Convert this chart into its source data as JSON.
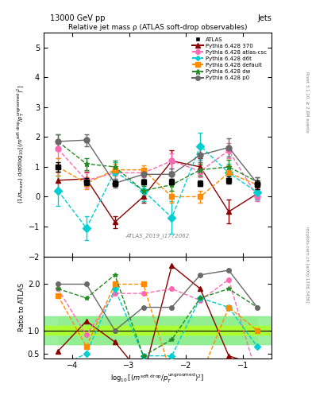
{
  "title_top": "13000 GeV pp",
  "title_top_right": "Jets",
  "plot_title": "Relative jet mass ρ (ATLAS soft-drop observables)",
  "watermark": "ATLAS_2019_I1772062",
  "right_label_top": "Rivet 3.1.10, ≥ 2.6M events",
  "right_label_bottom": "mcplots.cern.ch [arXiv:1306.3436]",
  "ylabel_main": "(1/σₛₑₜʳⁱᶜ) dσ/d log₁₀[(mˢᵒᶠᵗ ᵈʳᵒᵖ/pᵀᵘⁿᵏʳᵒᵒᵐᵉᵈ)²]",
  "ylabel_ratio": "Ratio to ATLAS",
  "xlabel": "log₁₀[(mˢᵒᶠᵗ ᵈʳᵒᵖ/pᵀᵘⁿᵏʳᵒᵒᵐᵉᵈ)²]",
  "xlim": [
    -4.5,
    -0.5
  ],
  "ylim_main": [
    -2.0,
    5.5
  ],
  "ylim_ratio": [
    0.4,
    2.6
  ],
  "x_atlas": [
    -4.25,
    -3.75,
    -3.25,
    -2.75,
    -2.25,
    -1.75,
    -1.25,
    -0.75
  ],
  "y_atlas": [
    1.0,
    0.5,
    0.45,
    0.5,
    0.5,
    0.45,
    0.55,
    0.4
  ],
  "yerr_atlas": [
    0.15,
    0.12,
    0.1,
    0.08,
    0.1,
    0.1,
    0.12,
    0.15
  ],
  "x_mc": [
    -4.25,
    -3.75,
    -3.25,
    -2.75,
    -2.25,
    -1.75,
    -1.25,
    -0.75
  ],
  "y_370": [
    0.55,
    0.6,
    -0.85,
    0.0,
    1.2,
    1.0,
    -0.5,
    0.1
  ],
  "yerr_370": [
    0.3,
    0.25,
    0.2,
    0.2,
    0.35,
    0.3,
    0.4,
    0.2
  ],
  "y_atlas_csc": [
    1.6,
    0.55,
    0.8,
    0.8,
    1.2,
    0.85,
    1.55,
    0.0
  ],
  "yerr_atlas_csc": [
    0.3,
    0.25,
    0.2,
    0.15,
    0.25,
    0.2,
    0.25,
    0.15
  ],
  "y_d6t": [
    0.2,
    -1.05,
    0.85,
    0.2,
    -0.7,
    1.7,
    0.8,
    0.15
  ],
  "yerr_d6t": [
    0.5,
    0.4,
    0.3,
    0.35,
    0.55,
    0.45,
    0.3,
    0.25
  ],
  "y_default": [
    1.0,
    0.45,
    0.9,
    0.9,
    0.0,
    0.0,
    0.8,
    0.4
  ],
  "yerr_default": [
    0.3,
    0.2,
    0.2,
    0.15,
    0.2,
    0.2,
    0.25,
    0.15
  ],
  "y_dw": [
    1.85,
    1.1,
    1.0,
    0.2,
    0.4,
    0.9,
    1.0,
    0.5
  ],
  "yerr_dw": [
    0.25,
    0.2,
    0.2,
    0.15,
    0.2,
    0.2,
    0.25,
    0.15
  ],
  "y_p0": [
    1.85,
    1.9,
    0.45,
    0.75,
    0.75,
    1.4,
    1.65,
    0.45
  ],
  "yerr_p0": [
    0.25,
    0.2,
    0.15,
    0.15,
    0.2,
    0.25,
    0.3,
    0.2
  ],
  "color_atlas": "#000000",
  "color_370": "#8B0000",
  "color_atlas_csc": "#FF69B4",
  "color_d6t": "#00CED1",
  "color_default": "#FF8C00",
  "color_dw": "#228B22",
  "color_p0": "#696969",
  "green_band_inner": 0.1,
  "green_band_outer": 0.3,
  "ratio_y_370": [
    0.55,
    1.2,
    0.75,
    0.0,
    2.4,
    1.9,
    0.45,
    0.25
  ],
  "ratio_y_atlas_csc": [
    1.9,
    0.9,
    1.8,
    1.8,
    1.9,
    1.65,
    2.1,
    0.0
  ],
  "ratio_y_d6t": [
    0.2,
    0.5,
    1.9,
    0.45,
    0.45,
    1.7,
    1.5,
    0.65
  ],
  "ratio_y_default": [
    1.75,
    0.65,
    2.0,
    2.0,
    0.0,
    0.0,
    1.5,
    1.0
  ],
  "ratio_y_dw": [
    1.9,
    1.7,
    2.2,
    0.45,
    0.8,
    1.7,
    1.9,
    1.5
  ],
  "ratio_y_p0": [
    2.0,
    2.0,
    1.0,
    1.5,
    1.5,
    2.2,
    2.3,
    1.5
  ],
  "xticks": [
    -4,
    -3,
    -2,
    -1
  ],
  "yticks_main": [
    -2,
    -1,
    0,
    1,
    2,
    3,
    4,
    5
  ],
  "yticks_ratio": [
    0.5,
    1,
    2
  ]
}
